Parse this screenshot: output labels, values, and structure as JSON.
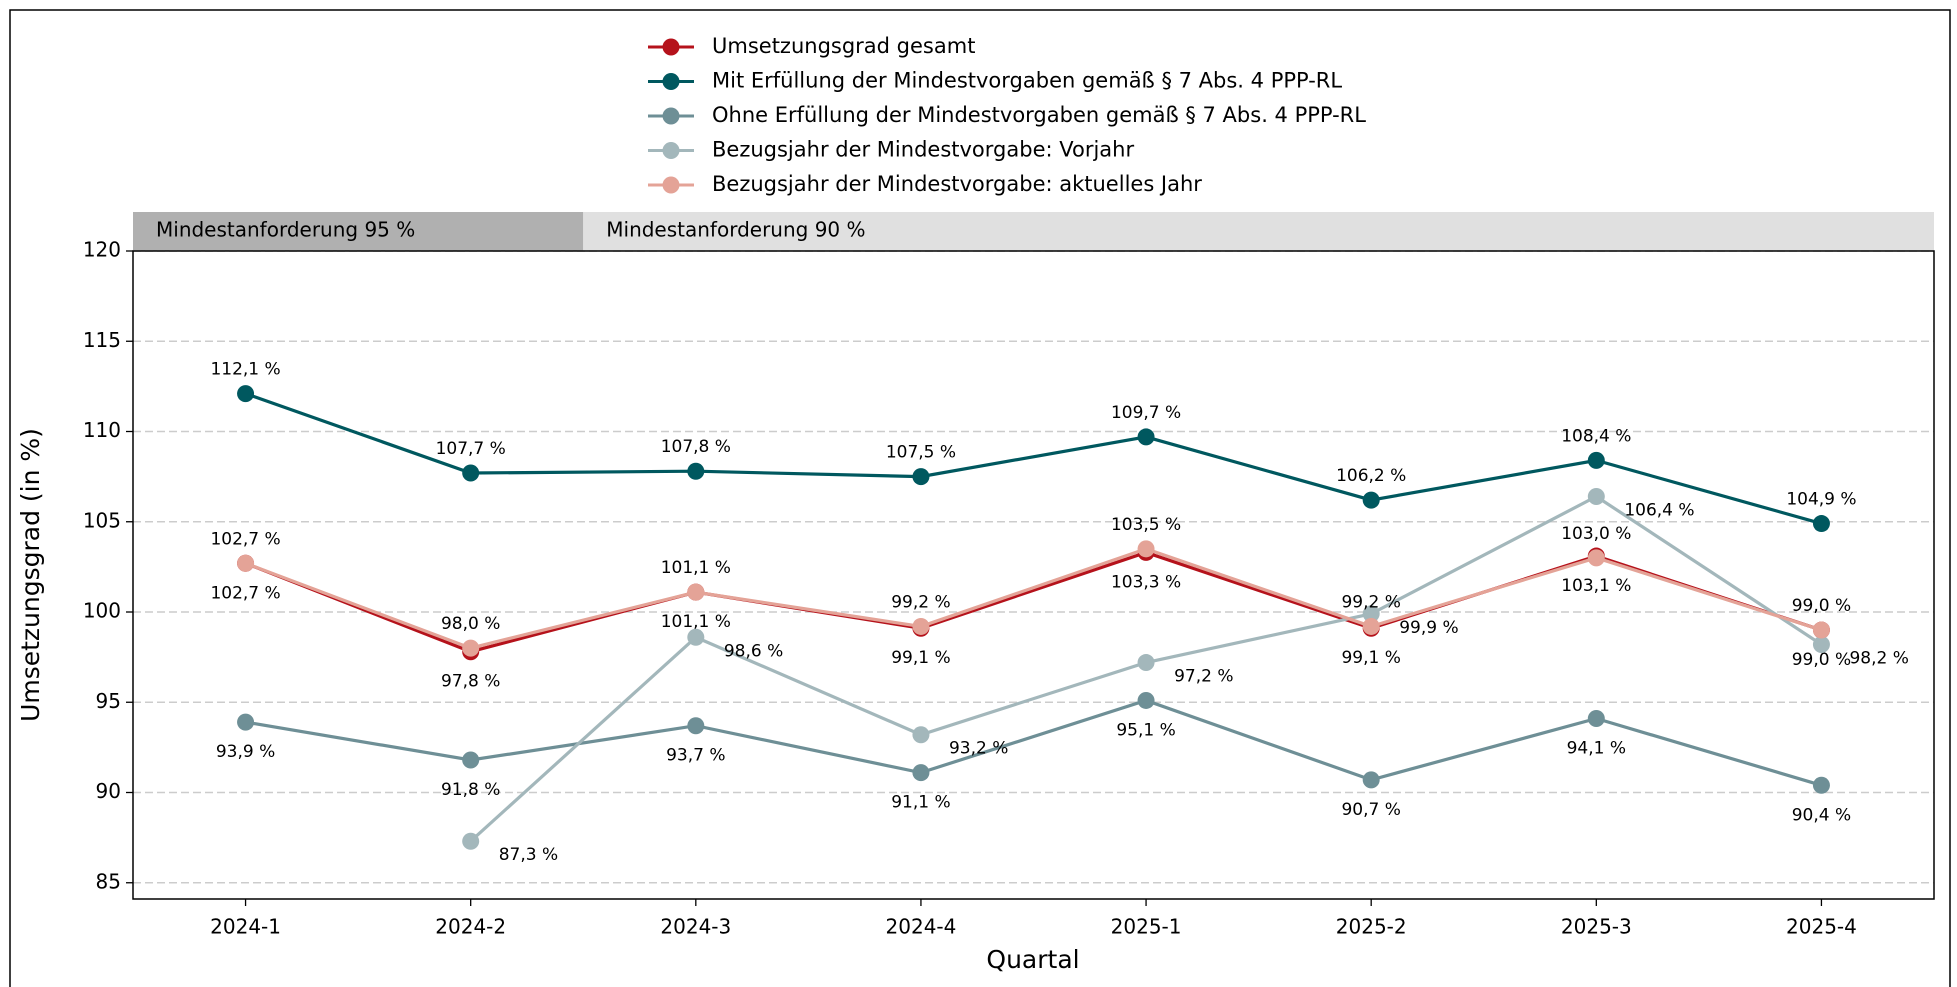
{
  "chart_data": {
    "type": "line",
    "y_label": "Umsetzungsgrad (in %)",
    "x_label": "Quartal",
    "categories": [
      "2024-1",
      "2024-2",
      "2024-3",
      "2024-4",
      "2025-1",
      "2025-2",
      "2025-3",
      "2025-4"
    ],
    "ylim": [
      84.1,
      120
    ],
    "yticks": [
      85,
      90,
      95,
      100,
      105,
      110,
      115,
      120
    ],
    "grid": true,
    "phases": [
      {
        "label": "Mindestanforderung 95 %",
        "start": "2024-1",
        "end": "2024-2",
        "color": "#b0b0b0"
      },
      {
        "label": "Mindestanforderung 90 %",
        "start": "2024-3",
        "end": "2025-4",
        "color": "#e0e0e0"
      }
    ],
    "series": [
      {
        "name": "Umsetzungsgrad gesamt",
        "color": "#b5121b",
        "values": [
          102.7,
          97.8,
          101.1,
          99.1,
          103.3,
          99.1,
          103.1,
          99.0
        ],
        "value_labels": [
          "102,7 %",
          "97,8 %",
          "101,1 %",
          "99,1 %",
          "103,3 %",
          "99,1 %",
          "103,1 %",
          "99,0 %"
        ]
      },
      {
        "name": "Mit Erfüllung der Mindestvorgaben gemäß § 7 Abs. 4 PPP-RL",
        "color": "#00585f",
        "values": [
          112.1,
          107.7,
          107.8,
          107.5,
          109.7,
          106.2,
          108.4,
          104.9
        ],
        "value_labels": [
          "112,1 %",
          "107,7 %",
          "107,8 %",
          "107,5 %",
          "109,7 %",
          "106,2 %",
          "108,4 %",
          "104,9 %"
        ]
      },
      {
        "name": "Ohne Erfüllung der Mindestvorgaben gemäß § 7 Abs. 4 PPP-RL",
        "color": "#6e8f96",
        "values": [
          93.9,
          91.8,
          93.7,
          91.1,
          95.1,
          90.7,
          94.1,
          90.4
        ],
        "value_labels": [
          "93,9 %",
          "91,8 %",
          "93,7 %",
          "91,1 %",
          "95,1 %",
          "90,7 %",
          "94,1 %",
          "90,4 %"
        ]
      },
      {
        "name": "Bezugsjahr der Mindestvorgabe: Vorjahr",
        "color": "#a3b7bb",
        "values": [
          null,
          87.3,
          98.6,
          93.2,
          97.2,
          99.9,
          106.4,
          98.2
        ],
        "value_labels": [
          null,
          "87,3 %",
          "98,6 %",
          "93,2 %",
          "97,2 %",
          "99,9 %",
          "106,4 %",
          "98,2 %"
        ]
      },
      {
        "name": "Bezugsjahr der Mindestvorgabe: aktuelles Jahr",
        "color": "#e4a397",
        "values": [
          102.7,
          98.0,
          101.1,
          99.2,
          103.5,
          99.2,
          103.0,
          99.0
        ],
        "value_labels": [
          "102,7 %",
          "98,0 %",
          "101,1 %",
          "99,2 %",
          "103,5 %",
          "99,2 %",
          "103,0 %",
          "99,0 %"
        ]
      }
    ]
  }
}
